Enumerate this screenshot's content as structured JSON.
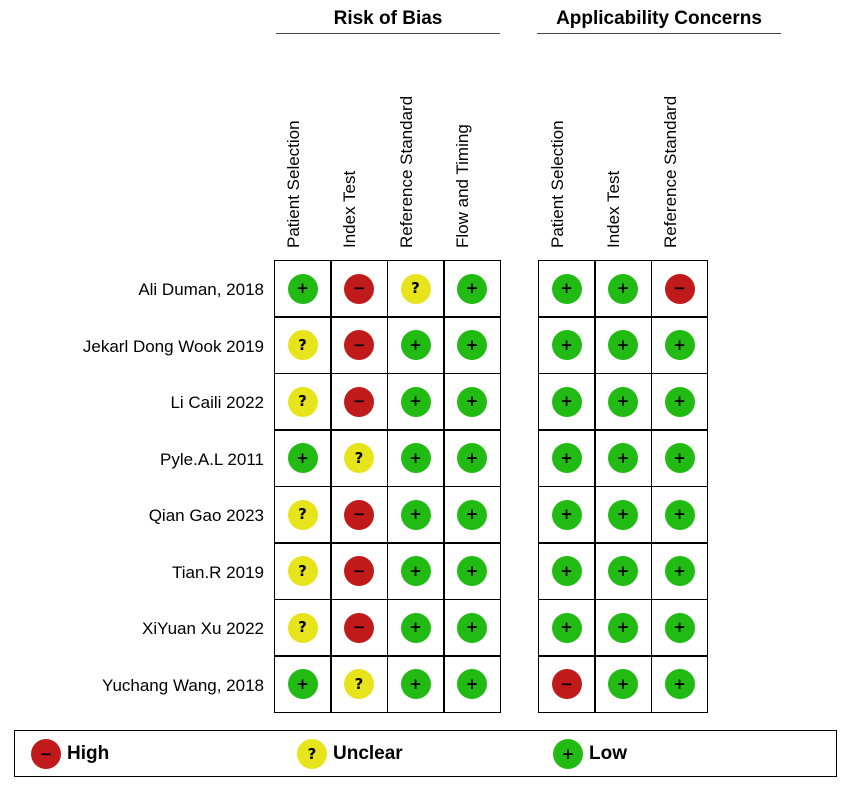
{
  "groups": {
    "risk_of_bias": "Risk of Bias",
    "applicability": "Applicability Concerns"
  },
  "rob_columns": [
    "Patient Selection",
    "Index Test",
    "Reference Standard",
    "Flow and Timing"
  ],
  "ac_columns": [
    "Patient Selection",
    "Index Test",
    "Reference Standard"
  ],
  "studies": [
    {
      "name": "Ali Duman,  2018",
      "rob": [
        "low",
        "high",
        "unclear",
        "low"
      ],
      "ac": [
        "low",
        "low",
        "high"
      ]
    },
    {
      "name": "Jekarl Dong Wook  2019",
      "rob": [
        "unclear",
        "high",
        "low",
        "low"
      ],
      "ac": [
        "low",
        "low",
        "low"
      ]
    },
    {
      "name": "Li Caili 2022",
      "rob": [
        "unclear",
        "high",
        "low",
        "low"
      ],
      "ac": [
        "low",
        "low",
        "low"
      ]
    },
    {
      "name": "Pyle.A.L 2011",
      "rob": [
        "low",
        "unclear",
        "low",
        "low"
      ],
      "ac": [
        "low",
        "low",
        "low"
      ]
    },
    {
      "name": "Qian Gao 2023",
      "rob": [
        "unclear",
        "high",
        "low",
        "low"
      ],
      "ac": [
        "low",
        "low",
        "low"
      ]
    },
    {
      "name": "Tian.R 2019",
      "rob": [
        "unclear",
        "high",
        "low",
        "low"
      ],
      "ac": [
        "low",
        "low",
        "low"
      ]
    },
    {
      "name": "XiYuan Xu 2022",
      "rob": [
        "unclear",
        "high",
        "low",
        "low"
      ],
      "ac": [
        "low",
        "low",
        "low"
      ]
    },
    {
      "name": "Yuchang Wang,  2018",
      "rob": [
        "low",
        "unclear",
        "low",
        "low"
      ],
      "ac": [
        "high",
        "low",
        "low"
      ]
    }
  ],
  "symbols": {
    "low": "+",
    "high": "−",
    "unclear": "?"
  },
  "colors": {
    "low": "#22bb14",
    "high": "#c01a1a",
    "unclear": "#e8e41c"
  },
  "legend": {
    "high": "High",
    "unclear": "Unclear",
    "low": "Low"
  }
}
